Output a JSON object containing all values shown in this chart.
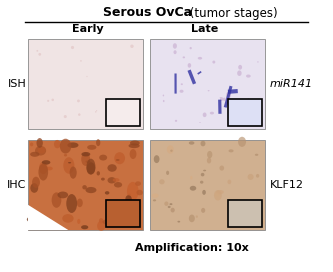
{
  "title_bold": "Serous OvCa",
  "title_normal": " (tumor stages)",
  "col_labels": [
    "Early",
    "Late"
  ],
  "row_labels": [
    "ISH",
    "IHC"
  ],
  "right_labels": [
    "miR141",
    "KLF12"
  ],
  "bottom_label": "Amplification: 10x",
  "bg_color": "#ffffff",
  "panel_colors": {
    "ISH_Early": "#f0e4e4",
    "ISH_Late": "#e8e2f0",
    "IHC_Early": "#c87040",
    "IHC_Late": "#d0b090"
  },
  "inset_colors": {
    "ISH_Early": "#f5ecec",
    "ISH_Late": "#dde0f5",
    "IHC_Early": "#b86030",
    "IHC_Late": "#ccc0b0"
  }
}
